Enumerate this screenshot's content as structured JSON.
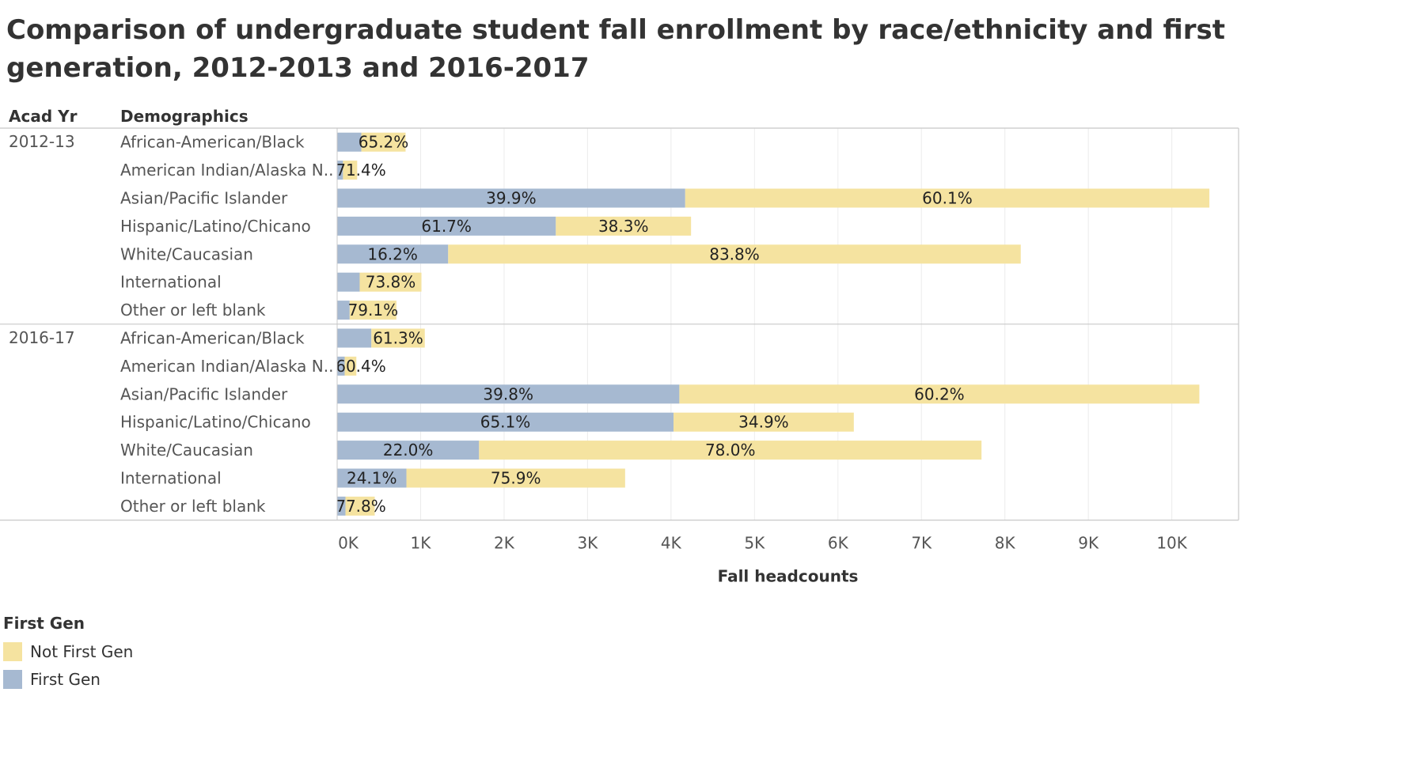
{
  "header": {
    "title": "Comparison of undergraduate student fall enrollment by race/ethnicity and first generation, 2012-2013 and 2016-2017"
  },
  "chart_data": {
    "type": "bar",
    "stacked": true,
    "orientation": "horizontal",
    "title": "Comparison of undergraduate student fall enrollment by race/ethnicity and first generation, 2012-2013 and 2016-2017",
    "row_headers": [
      "Acad Yr",
      "Demographics"
    ],
    "xlabel": "Fall headcounts",
    "xlim": [
      0,
      10800
    ],
    "x_ticks": [
      0,
      1000,
      2000,
      3000,
      4000,
      5000,
      6000,
      7000,
      8000,
      9000,
      10000
    ],
    "x_tick_labels": [
      "0K",
      "1K",
      "2K",
      "3K",
      "4K",
      "5K",
      "6K",
      "7K",
      "8K",
      "9K",
      "10K"
    ],
    "grid": "vertical",
    "legend": {
      "title": "First Gen",
      "position": "bottom-left",
      "items": [
        {
          "name": "Not First Gen",
          "color": "#f5e3a0"
        },
        {
          "name": "First Gen",
          "color": "#a6b9d1"
        }
      ]
    },
    "groups": [
      {
        "year": "2012-13",
        "rows": [
          {
            "category": "African-American/Black",
            "first_gen": 290,
            "not_first_gen": 530,
            "first_gen_label": "",
            "not_first_gen_label": "65.2%"
          },
          {
            "category": "American Indian/Alaska N..",
            "first_gen": 70,
            "not_first_gen": 170,
            "first_gen_label": "",
            "not_first_gen_label": "71.4%"
          },
          {
            "category": "Asian/Pacific Islander",
            "first_gen": 4170,
            "not_first_gen": 6280,
            "first_gen_label": "39.9%",
            "not_first_gen_label": "60.1%"
          },
          {
            "category": "Hispanic/Latino/Chicano",
            "first_gen": 2620,
            "not_first_gen": 1620,
            "first_gen_label": "61.7%",
            "not_first_gen_label": "38.3%"
          },
          {
            "category": "White/Caucasian",
            "first_gen": 1330,
            "not_first_gen": 6860,
            "first_gen_label": "16.2%",
            "not_first_gen_label": "83.8%"
          },
          {
            "category": "International",
            "first_gen": 270,
            "not_first_gen": 740,
            "first_gen_label": "",
            "not_first_gen_label": "73.8%"
          },
          {
            "category": "Other or left blank",
            "first_gen": 150,
            "not_first_gen": 560,
            "first_gen_label": "",
            "not_first_gen_label": "79.1%"
          }
        ]
      },
      {
        "year": "2016-17",
        "rows": [
          {
            "category": "African-American/Black",
            "first_gen": 410,
            "not_first_gen": 640,
            "first_gen_label": "",
            "not_first_gen_label": "61.3%"
          },
          {
            "category": "American Indian/Alaska N..",
            "first_gen": 90,
            "not_first_gen": 140,
            "first_gen_label": "",
            "not_first_gen_label": "60.4%"
          },
          {
            "category": "Asian/Pacific Islander",
            "first_gen": 4100,
            "not_first_gen": 6230,
            "first_gen_label": "39.8%",
            "not_first_gen_label": "60.2%"
          },
          {
            "category": "Hispanic/Latino/Chicano",
            "first_gen": 4030,
            "not_first_gen": 2160,
            "first_gen_label": "65.1%",
            "not_first_gen_label": "34.9%"
          },
          {
            "category": "White/Caucasian",
            "first_gen": 1700,
            "not_first_gen": 6020,
            "first_gen_label": "22.0%",
            "not_first_gen_label": "78.0%"
          },
          {
            "category": "International",
            "first_gen": 830,
            "not_first_gen": 2620,
            "first_gen_label": "24.1%",
            "not_first_gen_label": "75.9%"
          },
          {
            "category": "Other or left blank",
            "first_gen": 100,
            "not_first_gen": 350,
            "first_gen_label": "",
            "not_first_gen_label": "77.8%"
          }
        ]
      }
    ]
  }
}
